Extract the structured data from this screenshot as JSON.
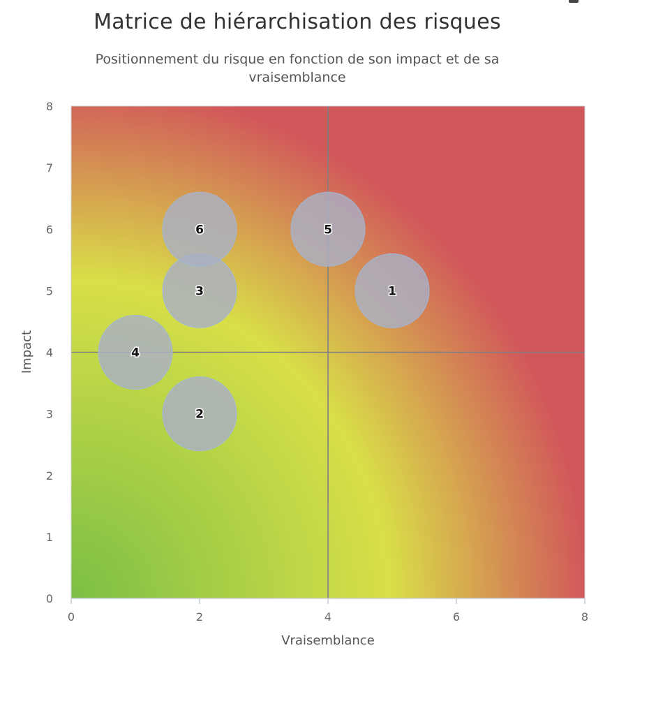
{
  "chart_data": {
    "type": "scatter",
    "title": "Matrice de hiérarchisation des risques",
    "subtitle": "Positionnement du risque en fonction de son impact et de sa vraisemblance",
    "xlabel": "Vraisemblance",
    "ylabel": "Impact",
    "xlim": [
      0,
      8
    ],
    "ylim": [
      0,
      8
    ],
    "x_ticks": [
      "0",
      "2",
      "4",
      "6",
      "8"
    ],
    "y_ticks": [
      "0",
      "1",
      "2",
      "3",
      "4",
      "5",
      "6",
      "7",
      "8"
    ],
    "reference_lines": {
      "x": 4,
      "y": 4
    },
    "grid": false,
    "legend": "none",
    "background_gradient": [
      "#7bbf45",
      "#d9df48",
      "#d1585a"
    ],
    "bubble_color": "#a9b0c4",
    "points": [
      {
        "label": "1",
        "x": 5,
        "y": 5
      },
      {
        "label": "2",
        "x": 2,
        "y": 3
      },
      {
        "label": "3",
        "x": 2,
        "y": 5
      },
      {
        "label": "4",
        "x": 1,
        "y": 4
      },
      {
        "label": "5",
        "x": 4,
        "y": 6
      },
      {
        "label": "6",
        "x": 2,
        "y": 6
      }
    ]
  }
}
